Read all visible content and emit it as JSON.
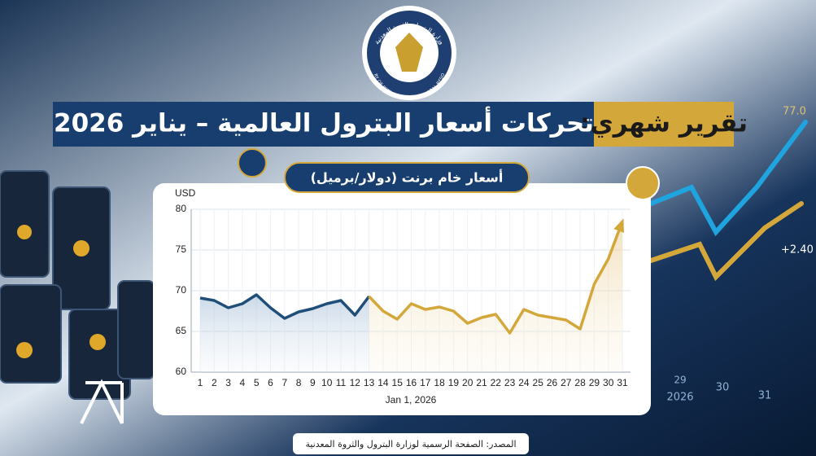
{
  "header": {
    "logo_arabic": "وزارة البترول والثروة المعدنية",
    "logo_english": "MINISTRY OF PETROLEUM AND MINERAL RESOURCES",
    "title_highlight": "تقرير شهري:",
    "title_main": "تحركات أسعار البترول العالمية – يناير 2026"
  },
  "chart_data": {
    "type": "line",
    "title": "أسعار خام برنت (دولار/برميل)",
    "y_label": "USD",
    "x_label": "Jan 1, 2026",
    "x": [
      1,
      2,
      3,
      4,
      5,
      6,
      7,
      8,
      9,
      10,
      11,
      12,
      13,
      14,
      15,
      16,
      17,
      18,
      19,
      20,
      21,
      22,
      23,
      24,
      25,
      26,
      27,
      28,
      29,
      30,
      31
    ],
    "xlim": [
      1,
      31
    ],
    "xticks": [
      1,
      2,
      3,
      4,
      5,
      6,
      7,
      8,
      9,
      10,
      11,
      12,
      13,
      14,
      15,
      16,
      17,
      18,
      19,
      20,
      21,
      22,
      23,
      24,
      25,
      26,
      27,
      28,
      29,
      30,
      31
    ],
    "ylim": [
      60,
      80
    ],
    "yticks": [
      60,
      65,
      70,
      75,
      80
    ],
    "grid": true,
    "series": [
      {
        "color": "#1f4e79",
        "values": [
          69.1,
          68.8,
          67.9,
          68.4,
          69.5,
          67.9,
          66.6,
          67.4,
          67.8,
          68.4,
          68.8,
          67.0,
          69.3,
          null,
          null,
          null,
          null,
          null,
          null,
          null,
          null,
          null,
          null,
          null,
          null,
          null,
          null,
          null,
          null,
          null,
          null
        ]
      },
      {
        "color": "#d4a73a",
        "values": [
          null,
          null,
          null,
          null,
          null,
          null,
          null,
          null,
          null,
          null,
          null,
          null,
          69.3,
          67.5,
          66.5,
          68.4,
          67.7,
          68.0,
          67.5,
          66.0,
          66.7,
          67.1,
          64.8,
          67.7,
          67.0,
          66.7,
          66.4,
          65.3,
          70.8,
          73.9,
          78.5
        ]
      }
    ]
  },
  "background_labels": {
    "price": "77.0",
    "change": "+2.40",
    "day_29": "29",
    "year": "2026",
    "day_30": "30",
    "day_31": "31"
  },
  "footer": {
    "source": "المصدر: الصفحة الرسمية لوزارة البترول والثروة المعدنية"
  }
}
